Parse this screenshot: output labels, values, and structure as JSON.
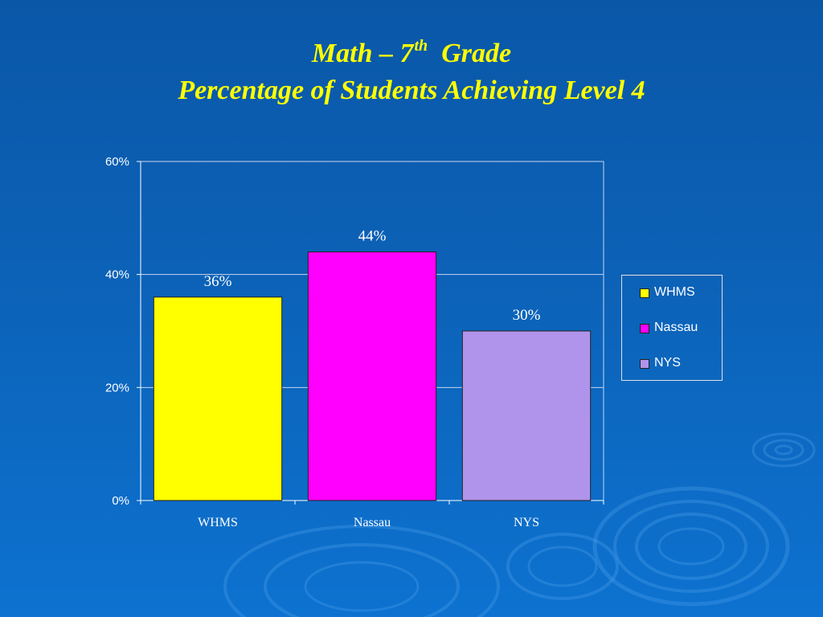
{
  "title": {
    "line1_prefix": "Math – 7",
    "line1_sup": "th",
    "line1_suffix": "Grade",
    "line2": "Percentage of Students Achieving Level 4"
  },
  "chart_data": {
    "type": "bar",
    "categories": [
      "WHMS",
      "Nassau",
      "NYS"
    ],
    "values": [
      36,
      44,
      30
    ],
    "data_labels": [
      "36%",
      "44%",
      "30%"
    ],
    "colors": [
      "#ffff00",
      "#ff00ff",
      "#b094eb"
    ],
    "yticks": [
      "0%",
      "20%",
      "40%",
      "60%"
    ],
    "ylim": [
      0,
      60
    ],
    "grid": true,
    "legend": {
      "position": "right",
      "entries": [
        "WHMS",
        "Nassau",
        "NYS"
      ]
    }
  },
  "colors": {
    "title": "#ffff00",
    "text": "#ffffff",
    "gridline": "#c8d4f0"
  }
}
